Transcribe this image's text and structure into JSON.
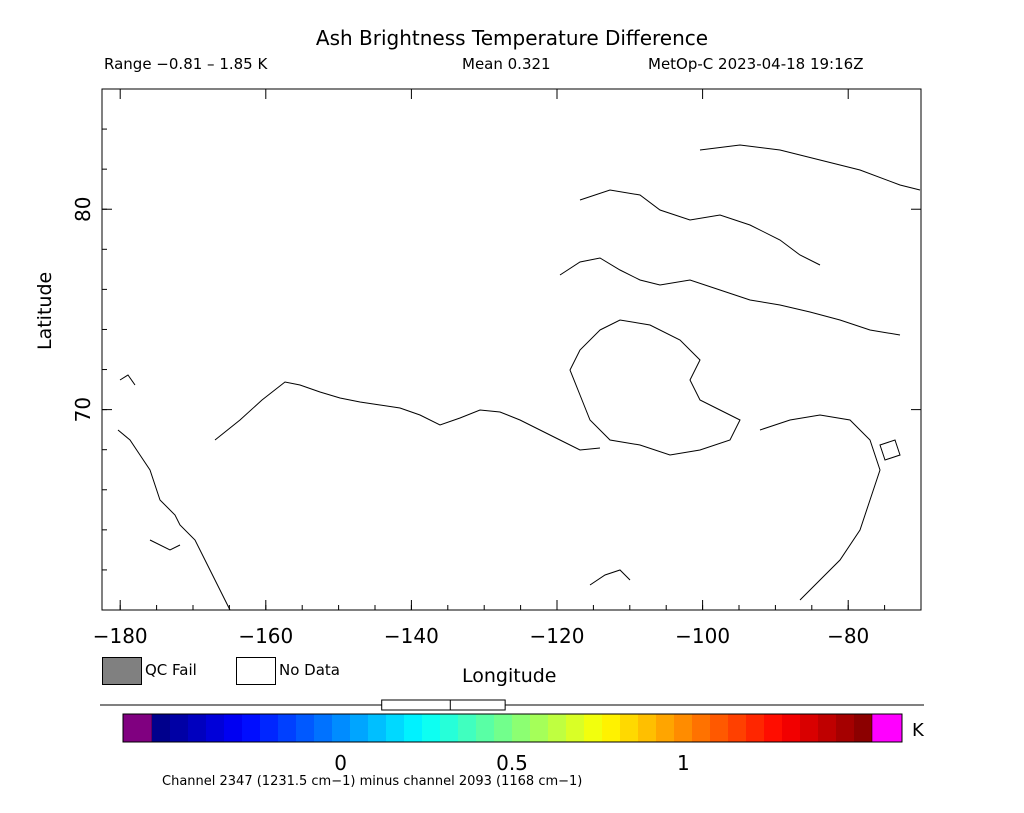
{
  "header": {
    "title": "Ash Brightness Temperature Difference",
    "range_text": "Range −0.81 – 1.85 K",
    "mean_text": "Mean 0.321",
    "satellite_text": "MetOp-C 2023-04-18 19:16Z"
  },
  "legend": {
    "qc_fail_label": "QC Fail",
    "no_data_label": "No Data",
    "qc_fail_color": "#808080",
    "no_data_color": "#ffffff"
  },
  "footer": {
    "channel_text": "Channel 2347 (1231.5 cm−1) minus channel 2093 (1168 cm−1)"
  },
  "chart_data": {
    "type": "heatmap",
    "title": "Ash Brightness Temperature Difference",
    "xlabel": "Longitude",
    "ylabel": "Latitude",
    "xlim": [
      -182.5,
      -70
    ],
    "ylim": [
      60,
      86
    ],
    "x_ticks": [
      -180,
      -160,
      -140,
      -120,
      -100,
      -80
    ],
    "x_tick_labels": [
      "−180",
      "−160",
      "−140",
      "−120",
      "−100",
      "−80"
    ],
    "y_ticks": [
      70,
      80
    ],
    "y_tick_labels": [
      "70",
      "80"
    ],
    "value_range": [
      -0.81,
      1.85
    ],
    "mean": 0.321,
    "units": "K",
    "colorbar": {
      "min": -0.55,
      "max": 1.55,
      "ticks": [
        0,
        0.5,
        1
      ],
      "tick_labels": [
        "0",
        "0.5",
        "1"
      ],
      "unit_label": "K",
      "under_color": "#800080",
      "over_color": "#ff00ff",
      "colors": [
        "#00007f",
        "#0000ff",
        "#007fff",
        "#00ffff",
        "#7fff7f",
        "#ffff00",
        "#ff7f00",
        "#ff0000",
        "#7f0000"
      ],
      "box_plot": {
        "q1": 0.12,
        "median": 0.32,
        "q3": 0.48,
        "min": -0.81,
        "max": 1.85
      }
    }
  }
}
